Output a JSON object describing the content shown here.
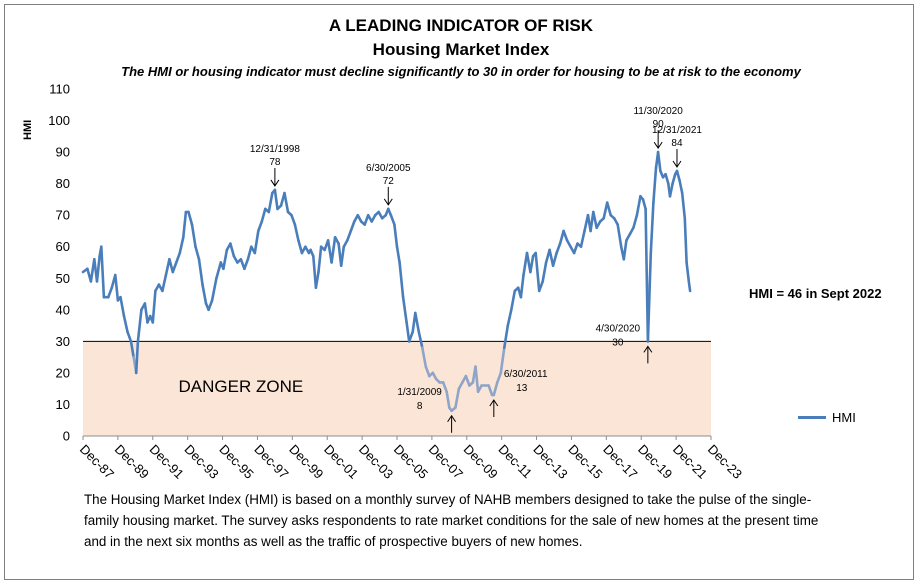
{
  "chart_data": {
    "type": "line",
    "title": "A LEADING INDICATOR OF RISK",
    "subtitle": "Housing Market Index",
    "note": "The HMI or housing indicator must decline significantly to 30 in order for housing to be at risk to the economy",
    "ylabel": "HMI",
    "xlabel": "",
    "ylim": [
      0,
      110
    ],
    "yticks": [
      "0",
      "10",
      "20",
      "30",
      "40",
      "50",
      "60",
      "70",
      "80",
      "90",
      "100",
      "110"
    ],
    "xticks": [
      "Dec-87",
      "Dec-89",
      "Dec-91",
      "Dec-93",
      "Dec-95",
      "Dec-97",
      "Dec-99",
      "Dec-01",
      "Dec-03",
      "Dec-05",
      "Dec-07",
      "Dec-09",
      "Dec-11",
      "Dec-13",
      "Dec-15",
      "Dec-17",
      "Dec-19",
      "Dec-21",
      "Dec-23"
    ],
    "legend": "right",
    "danger_zone": {
      "label": "DANGER ZONE",
      "threshold": 30
    },
    "hmi_note": "HMI = 46 in Sept 2022",
    "series": [
      {
        "name": "HMI",
        "color": "#4a7ebb",
        "danger_color": "#8ea5c8",
        "points": [
          [
            1987.95,
            52
          ],
          [
            1988.2,
            53
          ],
          [
            1988.4,
            49
          ],
          [
            1988.6,
            56
          ],
          [
            1988.75,
            49
          ],
          [
            1988.9,
            57
          ],
          [
            1989.0,
            60
          ],
          [
            1989.15,
            44
          ],
          [
            1989.4,
            44
          ],
          [
            1989.6,
            47
          ],
          [
            1989.8,
            51
          ],
          [
            1989.95,
            43
          ],
          [
            1990.1,
            44
          ],
          [
            1990.3,
            38
          ],
          [
            1990.5,
            33
          ],
          [
            1990.7,
            30
          ],
          [
            1990.85,
            25
          ],
          [
            1991.0,
            20
          ],
          [
            1991.1,
            30
          ],
          [
            1991.3,
            40
          ],
          [
            1991.5,
            42
          ],
          [
            1991.65,
            36
          ],
          [
            1991.8,
            38
          ],
          [
            1991.95,
            36
          ],
          [
            1992.1,
            46
          ],
          [
            1992.3,
            48
          ],
          [
            1992.5,
            46
          ],
          [
            1992.7,
            51
          ],
          [
            1992.9,
            56
          ],
          [
            1993.1,
            52
          ],
          [
            1993.3,
            55
          ],
          [
            1993.5,
            58
          ],
          [
            1993.7,
            63
          ],
          [
            1993.85,
            71
          ],
          [
            1994.0,
            71
          ],
          [
            1994.2,
            67
          ],
          [
            1994.4,
            60
          ],
          [
            1994.6,
            56
          ],
          [
            1994.8,
            48
          ],
          [
            1995.0,
            42
          ],
          [
            1995.15,
            40
          ],
          [
            1995.35,
            43
          ],
          [
            1995.6,
            50
          ],
          [
            1995.85,
            55
          ],
          [
            1996.0,
            53
          ],
          [
            1996.2,
            59
          ],
          [
            1996.4,
            61
          ],
          [
            1996.6,
            57
          ],
          [
            1996.8,
            55
          ],
          [
            1997.0,
            56
          ],
          [
            1997.2,
            53
          ],
          [
            1997.4,
            56
          ],
          [
            1997.6,
            60
          ],
          [
            1997.8,
            58
          ],
          [
            1998.0,
            65
          ],
          [
            1998.2,
            68
          ],
          [
            1998.4,
            72
          ],
          [
            1998.6,
            71
          ],
          [
            1998.8,
            77
          ],
          [
            1998.95,
            78
          ],
          [
            1999.1,
            72
          ],
          [
            1999.3,
            73
          ],
          [
            1999.5,
            77
          ],
          [
            1999.7,
            71
          ],
          [
            1999.9,
            70
          ],
          [
            2000.1,
            67
          ],
          [
            2000.3,
            62
          ],
          [
            2000.5,
            58
          ],
          [
            2000.7,
            60
          ],
          [
            2000.9,
            58
          ],
          [
            2001.0,
            59
          ],
          [
            2001.15,
            57
          ],
          [
            2001.3,
            47
          ],
          [
            2001.45,
            52
          ],
          [
            2001.6,
            60
          ],
          [
            2001.8,
            59
          ],
          [
            2002.0,
            62
          ],
          [
            2002.2,
            55
          ],
          [
            2002.4,
            63
          ],
          [
            2002.6,
            61
          ],
          [
            2002.75,
            54
          ],
          [
            2002.9,
            60
          ],
          [
            2003.1,
            62
          ],
          [
            2003.3,
            65
          ],
          [
            2003.5,
            68
          ],
          [
            2003.7,
            70
          ],
          [
            2003.9,
            68
          ],
          [
            2004.1,
            67
          ],
          [
            2004.3,
            70
          ],
          [
            2004.5,
            68
          ],
          [
            2004.7,
            70
          ],
          [
            2004.9,
            71
          ],
          [
            2005.1,
            69
          ],
          [
            2005.3,
            70
          ],
          [
            2005.45,
            72
          ],
          [
            2005.6,
            70
          ],
          [
            2005.8,
            67
          ],
          [
            2005.95,
            60
          ],
          [
            2006.1,
            55
          ],
          [
            2006.3,
            44
          ],
          [
            2006.5,
            36
          ],
          [
            2006.65,
            30
          ],
          [
            2006.85,
            33
          ],
          [
            2007.0,
            39
          ],
          [
            2007.2,
            33
          ],
          [
            2007.4,
            28
          ],
          [
            2007.6,
            22
          ],
          [
            2007.8,
            19
          ],
          [
            2008.0,
            20
          ],
          [
            2008.2,
            18
          ],
          [
            2008.4,
            17
          ],
          [
            2008.6,
            17
          ],
          [
            2008.8,
            14
          ],
          [
            2008.95,
            9
          ],
          [
            2009.08,
            8
          ],
          [
            2009.3,
            9
          ],
          [
            2009.5,
            15
          ],
          [
            2009.7,
            17
          ],
          [
            2009.9,
            19
          ],
          [
            2010.1,
            16
          ],
          [
            2010.3,
            17
          ],
          [
            2010.45,
            22
          ],
          [
            2010.6,
            14
          ],
          [
            2010.8,
            16
          ],
          [
            2011.0,
            16
          ],
          [
            2011.2,
            16
          ],
          [
            2011.4,
            13
          ],
          [
            2011.5,
            13
          ],
          [
            2011.7,
            17
          ],
          [
            2011.9,
            20
          ],
          [
            2012.1,
            28
          ],
          [
            2012.3,
            35
          ],
          [
            2012.5,
            40
          ],
          [
            2012.7,
            46
          ],
          [
            2012.9,
            47
          ],
          [
            2013.05,
            44
          ],
          [
            2013.2,
            51
          ],
          [
            2013.4,
            58
          ],
          [
            2013.6,
            52
          ],
          [
            2013.75,
            57
          ],
          [
            2013.9,
            58
          ],
          [
            2014.1,
            46
          ],
          [
            2014.3,
            49
          ],
          [
            2014.5,
            55
          ],
          [
            2014.7,
            59
          ],
          [
            2014.9,
            54
          ],
          [
            2015.1,
            58
          ],
          [
            2015.3,
            61
          ],
          [
            2015.5,
            65
          ],
          [
            2015.7,
            62
          ],
          [
            2015.9,
            60
          ],
          [
            2016.1,
            58
          ],
          [
            2016.3,
            61
          ],
          [
            2016.5,
            60
          ],
          [
            2016.7,
            65
          ],
          [
            2016.9,
            70
          ],
          [
            2017.05,
            65
          ],
          [
            2017.2,
            71
          ],
          [
            2017.4,
            66
          ],
          [
            2017.6,
            68
          ],
          [
            2017.8,
            69
          ],
          [
            2018.0,
            74
          ],
          [
            2018.2,
            70
          ],
          [
            2018.4,
            69
          ],
          [
            2018.6,
            67
          ],
          [
            2018.8,
            60
          ],
          [
            2018.95,
            56
          ],
          [
            2019.1,
            62
          ],
          [
            2019.3,
            64
          ],
          [
            2019.5,
            66
          ],
          [
            2019.7,
            70
          ],
          [
            2019.9,
            76
          ],
          [
            2020.05,
            75
          ],
          [
            2020.2,
            72
          ],
          [
            2020.33,
            30
          ],
          [
            2020.5,
            58
          ],
          [
            2020.65,
            74
          ],
          [
            2020.8,
            85
          ],
          [
            2020.92,
            90
          ],
          [
            2021.05,
            84
          ],
          [
            2021.2,
            82
          ],
          [
            2021.35,
            83
          ],
          [
            2021.5,
            80
          ],
          [
            2021.6,
            76
          ],
          [
            2021.75,
            80
          ],
          [
            2021.9,
            83
          ],
          [
            2022.0,
            84
          ],
          [
            2022.15,
            81
          ],
          [
            2022.3,
            77
          ],
          [
            2022.45,
            69
          ],
          [
            2022.55,
            55
          ],
          [
            2022.68,
            49
          ],
          [
            2022.75,
            46
          ]
        ]
      }
    ],
    "annotations": [
      {
        "date": "12/31/1998",
        "value": "78",
        "x": 1998.95,
        "y": 78
      },
      {
        "date": "6/30/2005",
        "value": "72",
        "x": 2005.45,
        "y": 72
      },
      {
        "date": "11/30/2020",
        "value": "90",
        "x": 2020.92,
        "y": 90
      },
      {
        "date": "12/31/2021",
        "value": "84",
        "x": 2022.0,
        "y": 84
      },
      {
        "date": "4/30/2020",
        "value": "30",
        "x": 2020.33,
        "y": 30
      },
      {
        "date": "1/31/2009",
        "value": "8",
        "x": 2009.08,
        "y": 8
      },
      {
        "date": "6/30/2011",
        "value": "13",
        "x": 2011.5,
        "y": 13
      }
    ]
  },
  "description": "The Housing Market Index (HMI) is based on a monthly survey of NAHB members designed to take the pulse of the single-family housing market. The survey asks respondents to rate market conditions for the sale of new homes at the present time and in the next six months as well as the traffic of prospective buyers of new homes."
}
